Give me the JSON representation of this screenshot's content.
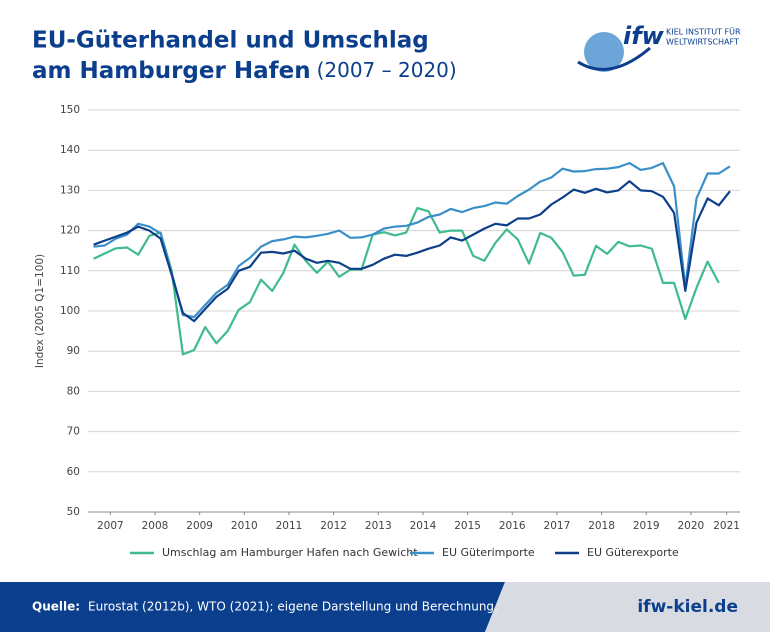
{
  "chart_data": {
    "type": "line",
    "title": "EU-Güterhandel und Umschlag",
    "title_line2": "am Hamburger Hafen",
    "subtitle": "(2007 – 2020)",
    "logo": {
      "mark": "ifw",
      "line1": "KIEL INSTITUT FÜR",
      "line2": "WELTWIRTSCHAFT"
    },
    "y_label": "Index (2005 Q1=100)",
    "x": [
      2007.125,
      2007.375,
      2007.625,
      2007.875,
      2008.125,
      2008.375,
      2008.625,
      2008.875,
      2009.125,
      2009.375,
      2009.625,
      2009.875,
      2010.125,
      2010.375,
      2010.625,
      2010.875,
      2011.125,
      2011.375,
      2011.625,
      2011.875,
      2012.125,
      2012.375,
      2012.625,
      2012.875,
      2013.125,
      2013.375,
      2013.625,
      2013.875,
      2014.125,
      2014.375,
      2014.625,
      2014.875,
      2015.125,
      2015.375,
      2015.625,
      2015.875,
      2016.125,
      2016.375,
      2016.625,
      2016.875,
      2017.125,
      2017.375,
      2017.625,
      2017.875,
      2018.125,
      2018.375,
      2018.625,
      2018.875,
      2019.125,
      2019.375,
      2019.625,
      2019.875,
      2020.125,
      2020.375,
      2020.625,
      2020.875,
      2021.125,
      2021.375
    ],
    "series": [
      {
        "name": "Umschlag am Hamburger Hafen nach Gewicht",
        "color": "#3fbb8c",
        "values": [
          113,
          114.3,
          115.6,
          115.8,
          114,
          118.7,
          119.5,
          110,
          89.2,
          90.3,
          96,
          92,
          95,
          100.3,
          102.2,
          107.8,
          105,
          109.5,
          116.5,
          112.5,
          109.5,
          112.3,
          108.5,
          110.3,
          110.3,
          119,
          119.6,
          118.8,
          119.5,
          125.6,
          124.8,
          119.5,
          120,
          120,
          113.7,
          112.5,
          117,
          120.3,
          117.8,
          111.8,
          119.4,
          118.2,
          114.7,
          108.8,
          109,
          116.2,
          114.2,
          117.2,
          116.1,
          116.3,
          115.5,
          107,
          107,
          98,
          105.8,
          112.3,
          107,
          null
        ]
      },
      {
        "name": "EU Güterimporte",
        "color": "#3b8fc9",
        "values": [
          116,
          116.3,
          118,
          119,
          121.7,
          121,
          119.3,
          109.5,
          99,
          98.5,
          101.5,
          104.5,
          106.5,
          111.2,
          113.2,
          116,
          117.4,
          117.8,
          118.5,
          118.3,
          118.7,
          119.2,
          120,
          118.2,
          118.3,
          119,
          120.5,
          121,
          121.2,
          122,
          123.4,
          124,
          125.4,
          124.6,
          125.6,
          126.1,
          127,
          126.7,
          128.6,
          130.2,
          132.2,
          133.2,
          135.4,
          134.7,
          134.8,
          135.3,
          135.4,
          135.8,
          136.8,
          135.1,
          135.6,
          136.8,
          131,
          106,
          128,
          134.2,
          134.2,
          136
        ]
      },
      {
        "name": "EU Güterexporte",
        "color": "#0d3f8a",
        "values": [
          116.5,
          117.5,
          118.5,
          119.5,
          121,
          120,
          118,
          109,
          99.5,
          97.5,
          100.5,
          103.5,
          105.5,
          110,
          111,
          114.5,
          114.7,
          114.3,
          115,
          113,
          112,
          112.5,
          112,
          110.5,
          110.5,
          111.5,
          113,
          114,
          113.7,
          114.5,
          115.5,
          116.3,
          118.3,
          117.5,
          119,
          120.5,
          121.7,
          121.3,
          123,
          123,
          124,
          126.5,
          128.2,
          130.2,
          129.4,
          130.4,
          129.5,
          130,
          132.3,
          130,
          129.8,
          128.4,
          124.4,
          105,
          122,
          128,
          126.3,
          129.8
        ]
      }
    ],
    "xlim": [
      2007,
      2021.6
    ],
    "xticks": [
      {
        "value": 2007.5,
        "label": "2007"
      },
      {
        "value": 2008.5,
        "label": "2008"
      },
      {
        "value": 2009.5,
        "label": "2009"
      },
      {
        "value": 2010.5,
        "label": "2010"
      },
      {
        "value": 2011.5,
        "label": "2011"
      },
      {
        "value": 2012.5,
        "label": "2012"
      },
      {
        "value": 2013.5,
        "label": "2013"
      },
      {
        "value": 2014.5,
        "label": "2014"
      },
      {
        "value": 2015.5,
        "label": "2015"
      },
      {
        "value": 2016.5,
        "label": "2016"
      },
      {
        "value": 2017.5,
        "label": "2017"
      },
      {
        "value": 2018.5,
        "label": "2018"
      },
      {
        "value": 2019.5,
        "label": "2019"
      },
      {
        "value": 2020.5,
        "label": "2020"
      },
      {
        "value": 2021.3,
        "label": "2021"
      }
    ],
    "ylim": [
      50,
      150
    ],
    "yticks": [
      50,
      60,
      70,
      80,
      90,
      100,
      110,
      120,
      130,
      140,
      150
    ],
    "grid": true,
    "footer": {
      "source_label": "Quelle:",
      "source": "Eurostat (2012b), WTO (2021); eigene Darstellung und Berechnung.",
      "url": "ifw-kiel.de"
    }
  }
}
